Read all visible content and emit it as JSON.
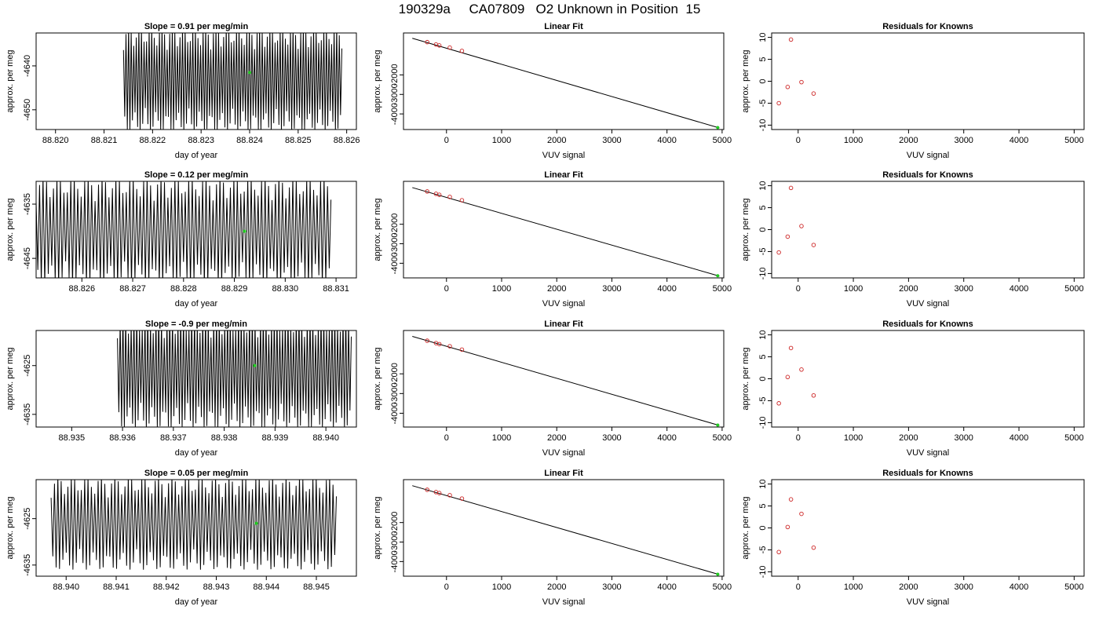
{
  "figure": {
    "main_title": "190329a     CA07809   O2 Unknown in Position  15"
  },
  "chart_data": [
    {
      "type": "line",
      "panel": "time-series-1",
      "title": "Slope =  0.91  per meg/min",
      "xlabel": "day of year",
      "ylabel": "approx. per meg",
      "xlim": [
        88.8196,
        88.8262
      ],
      "ylim": [
        -4654.5,
        -4632.5
      ],
      "xticks": [
        88.82,
        88.821,
        88.822,
        88.823,
        88.824,
        88.825,
        88.826
      ],
      "xtick_labels": [
        "88.820",
        "88.821",
        "88.822",
        "88.823",
        "88.824",
        "88.825",
        "88.826"
      ],
      "yticks": [
        -4640,
        -4650
      ],
      "ytick_labels": [
        "-4640",
        "-4650"
      ],
      "data_start": 88.8214,
      "data_end": 88.8259,
      "osc_center": -4643,
      "osc_amp": 12,
      "marker": {
        "x": 88.824,
        "y": -4641.5,
        "color": "#22cc22"
      },
      "line_color": "#000000"
    },
    {
      "type": "scatter",
      "panel": "linear-fit-1",
      "title": "Linear Fit",
      "xlabel": "VUV signal",
      "ylabel": "approx. per meg",
      "xlim": [
        -780,
        5030
      ],
      "ylim": [
        -4800,
        150
      ],
      "xticks": [
        0,
        1000,
        2000,
        3000,
        4000,
        5000
      ],
      "xtick_labels": [
        "0",
        "1000",
        "2000",
        "3000",
        "4000",
        "5000"
      ],
      "yticks": [
        -2000,
        -3000,
        -4000
      ],
      "ytick_labels": [
        "-2000",
        "-3000",
        "-4000"
      ],
      "points": [
        {
          "x": -350,
          "y": -320
        },
        {
          "x": -190,
          "y": -440
        },
        {
          "x": -130,
          "y": -490
        },
        {
          "x": 60,
          "y": -600
        },
        {
          "x": 280,
          "y": -770
        }
      ],
      "fit_line": {
        "x1": -620,
        "y1": -120,
        "x2": 4950,
        "y2": -4720
      },
      "unknown": {
        "x": 4920,
        "y": -4700
      },
      "point_color": "#cc2222",
      "unknown_color": "#22cc22"
    },
    {
      "type": "scatter",
      "panel": "residuals-1",
      "title": "Residuals for Knowns",
      "xlabel": "VUV signal",
      "ylabel": "approx. per meg",
      "xlim": [
        -480,
        5180
      ],
      "ylim": [
        -11,
        11
      ],
      "xticks": [
        0,
        1000,
        2000,
        3000,
        4000,
        5000
      ],
      "xtick_labels": [
        "0",
        "1000",
        "2000",
        "3000",
        "4000",
        "5000"
      ],
      "yticks": [
        10,
        5,
        0,
        -5,
        -10
      ],
      "ytick_labels": [
        "10",
        "5",
        "0",
        "-5",
        "-10"
      ],
      "points": [
        {
          "x": -350,
          "y": -5
        },
        {
          "x": -190,
          "y": -1.3
        },
        {
          "x": -130,
          "y": 9.5
        },
        {
          "x": 60,
          "y": -0.2
        },
        {
          "x": 280,
          "y": -2.8
        }
      ],
      "point_color": "#cc2222"
    },
    {
      "type": "line",
      "panel": "time-series-2",
      "title": "Slope =  0.12  per meg/min",
      "xlabel": "day of year",
      "ylabel": "approx. per meg",
      "xlim": [
        88.8251,
        88.8314
      ],
      "ylim": [
        -4648.6,
        -4630.8
      ],
      "xticks": [
        88.826,
        88.827,
        88.828,
        88.829,
        88.83,
        88.831
      ],
      "xtick_labels": [
        "88.826",
        "88.827",
        "88.828",
        "88.829",
        "88.830",
        "88.831"
      ],
      "yticks": [
        -4635,
        -4645
      ],
      "ytick_labels": [
        "-4635",
        "-4645"
      ],
      "data_start": 88.8251,
      "data_end": 88.8309,
      "osc_center": -4640,
      "osc_amp": 10,
      "marker": {
        "x": 88.8292,
        "y": -4640,
        "color": "#22cc22"
      },
      "line_color": "#000000"
    },
    {
      "type": "scatter",
      "panel": "linear-fit-2",
      "title": "Linear Fit",
      "xlabel": "VUV signal",
      "ylabel": "approx. per meg",
      "xlim": [
        -780,
        5030
      ],
      "ylim": [
        -4750,
        200
      ],
      "xticks": [
        0,
        1000,
        2000,
        3000,
        4000,
        5000
      ],
      "xtick_labels": [
        "0",
        "1000",
        "2000",
        "3000",
        "4000",
        "5000"
      ],
      "yticks": [
        -2000,
        -3000,
        -4000
      ],
      "ytick_labels": [
        "-2000",
        "-3000",
        "-4000"
      ],
      "points": [
        {
          "x": -350,
          "y": -320
        },
        {
          "x": -190,
          "y": -440
        },
        {
          "x": -130,
          "y": -490
        },
        {
          "x": 60,
          "y": -600
        },
        {
          "x": 280,
          "y": -770
        }
      ],
      "fit_line": {
        "x1": -620,
        "y1": -120,
        "x2": 4950,
        "y2": -4660
      },
      "unknown": {
        "x": 4920,
        "y": -4640
      },
      "point_color": "#cc2222",
      "unknown_color": "#22cc22"
    },
    {
      "type": "scatter",
      "panel": "residuals-2",
      "title": "Residuals for Knowns",
      "xlabel": "VUV signal",
      "ylabel": "approx. per meg",
      "xlim": [
        -480,
        5180
      ],
      "ylim": [
        -11,
        11
      ],
      "xticks": [
        0,
        1000,
        2000,
        3000,
        4000,
        5000
      ],
      "xtick_labels": [
        "0",
        "1000",
        "2000",
        "3000",
        "4000",
        "5000"
      ],
      "yticks": [
        10,
        5,
        0,
        -5,
        -10
      ],
      "ytick_labels": [
        "10",
        "5",
        "0",
        "-5",
        "-10"
      ],
      "points": [
        {
          "x": -350,
          "y": -5.2
        },
        {
          "x": -190,
          "y": -1.6
        },
        {
          "x": -130,
          "y": 9.5
        },
        {
          "x": 60,
          "y": 0.8
        },
        {
          "x": 280,
          "y": -3.5
        }
      ],
      "point_color": "#cc2222"
    },
    {
      "type": "line",
      "panel": "time-series-3",
      "title": "Slope =  -0.9  per meg/min",
      "xlabel": "day of year",
      "ylabel": "approx. per meg",
      "xlim": [
        88.9343,
        88.9406
      ],
      "ylim": [
        -4637.6,
        -4617.8
      ],
      "xticks": [
        88.935,
        88.936,
        88.937,
        88.938,
        88.939,
        88.94
      ],
      "xtick_labels": [
        "88.935",
        "88.936",
        "88.937",
        "88.938",
        "88.939",
        "88.940"
      ],
      "yticks": [
        -4625,
        -4635
      ],
      "ytick_labels": [
        "-4625",
        "-4635"
      ],
      "data_start": 88.9359,
      "data_end": 88.9405,
      "osc_center": -4626,
      "osc_amp": 12,
      "marker": {
        "x": 88.9386,
        "y": -4625,
        "color": "#22cc22"
      },
      "line_color": "#000000"
    },
    {
      "type": "scatter",
      "panel": "linear-fit-3",
      "title": "Linear Fit",
      "xlabel": "VUV signal",
      "ylabel": "approx. per meg",
      "xlim": [
        -780,
        5030
      ],
      "ylim": [
        -4700,
        200
      ],
      "xticks": [
        0,
        1000,
        2000,
        3000,
        4000,
        5000
      ],
      "xtick_labels": [
        "0",
        "1000",
        "2000",
        "3000",
        "4000",
        "5000"
      ],
      "yticks": [
        -2000,
        -3000,
        -4000
      ],
      "ytick_labels": [
        "-2000",
        "-3000",
        "-4000"
      ],
      "points": [
        {
          "x": -350,
          "y": -320
        },
        {
          "x": -190,
          "y": -440
        },
        {
          "x": -130,
          "y": -490
        },
        {
          "x": 60,
          "y": -600
        },
        {
          "x": 280,
          "y": -770
        }
      ],
      "fit_line": {
        "x1": -620,
        "y1": -100,
        "x2": 4950,
        "y2": -4620
      },
      "unknown": {
        "x": 4920,
        "y": -4600
      },
      "point_color": "#cc2222",
      "unknown_color": "#22cc22"
    },
    {
      "type": "scatter",
      "panel": "residuals-3",
      "title": "Residuals for Knowns",
      "xlabel": "VUV signal",
      "ylabel": "approx. per meg",
      "xlim": [
        -480,
        5180
      ],
      "ylim": [
        -11,
        11
      ],
      "xticks": [
        0,
        1000,
        2000,
        3000,
        4000,
        5000
      ],
      "xtick_labels": [
        "0",
        "1000",
        "2000",
        "3000",
        "4000",
        "5000"
      ],
      "yticks": [
        10,
        5,
        0,
        -5,
        -10
      ],
      "ytick_labels": [
        "10",
        "5",
        "0",
        "-5",
        "-10"
      ],
      "points": [
        {
          "x": -350,
          "y": -5.6
        },
        {
          "x": -190,
          "y": 0.4
        },
        {
          "x": -130,
          "y": 7.0
        },
        {
          "x": 60,
          "y": 2.1
        },
        {
          "x": 280,
          "y": -3.8
        }
      ],
      "point_color": "#cc2222"
    },
    {
      "type": "line",
      "panel": "time-series-4",
      "title": "Slope =  0.05  per meg/min",
      "xlabel": "day of year",
      "ylabel": "approx. per meg",
      "xlim": [
        88.9394,
        88.9458
      ],
      "ylim": [
        -4637.4,
        -4616.6
      ],
      "xticks": [
        88.94,
        88.941,
        88.942,
        88.943,
        88.944,
        88.945
      ],
      "xtick_labels": [
        "88.940",
        "88.941",
        "88.942",
        "88.943",
        "88.944",
        "88.945"
      ],
      "yticks": [
        -4625,
        -4635
      ],
      "ytick_labels": [
        "-4625",
        "-4635"
      ],
      "data_start": 88.9397,
      "data_end": 88.9454,
      "osc_center": -4626,
      "osc_amp": 10,
      "marker": {
        "x": 88.9438,
        "y": -4626,
        "color": "#22cc22"
      },
      "line_color": "#000000"
    },
    {
      "type": "scatter",
      "panel": "linear-fit-4",
      "title": "Linear Fit",
      "xlabel": "VUV signal",
      "ylabel": "approx. per meg",
      "xlim": [
        -780,
        5030
      ],
      "ylim": [
        -4750,
        200
      ],
      "xticks": [
        0,
        1000,
        2000,
        3000,
        4000,
        5000
      ],
      "xtick_labels": [
        "0",
        "1000",
        "2000",
        "3000",
        "4000",
        "5000"
      ],
      "yticks": [
        -2000,
        -3000,
        -4000
      ],
      "ytick_labels": [
        "-2000",
        "-3000",
        "-4000"
      ],
      "points": [
        {
          "x": -350,
          "y": -320
        },
        {
          "x": -190,
          "y": -440
        },
        {
          "x": -130,
          "y": -490
        },
        {
          "x": 60,
          "y": -600
        },
        {
          "x": 280,
          "y": -770
        }
      ],
      "fit_line": {
        "x1": -620,
        "y1": -110,
        "x2": 4950,
        "y2": -4670
      },
      "unknown": {
        "x": 4920,
        "y": -4650
      },
      "point_color": "#cc2222",
      "unknown_color": "#22cc22"
    },
    {
      "type": "scatter",
      "panel": "residuals-4",
      "title": "Residuals for Knowns",
      "xlabel": "VUV signal",
      "ylabel": "approx. per meg",
      "xlim": [
        -480,
        5180
      ],
      "ylim": [
        -11,
        11
      ],
      "xticks": [
        0,
        1000,
        2000,
        3000,
        4000,
        5000
      ],
      "xtick_labels": [
        "0",
        "1000",
        "2000",
        "3000",
        "4000",
        "5000"
      ],
      "yticks": [
        10,
        5,
        0,
        -5,
        -10
      ],
      "ytick_labels": [
        "10",
        "5",
        "0",
        "-5",
        "-10"
      ],
      "points": [
        {
          "x": -350,
          "y": -5.5
        },
        {
          "x": -190,
          "y": 0.2
        },
        {
          "x": -130,
          "y": 6.5
        },
        {
          "x": 60,
          "y": 3.2
        },
        {
          "x": 280,
          "y": -4.5
        }
      ],
      "point_color": "#cc2222"
    }
  ]
}
